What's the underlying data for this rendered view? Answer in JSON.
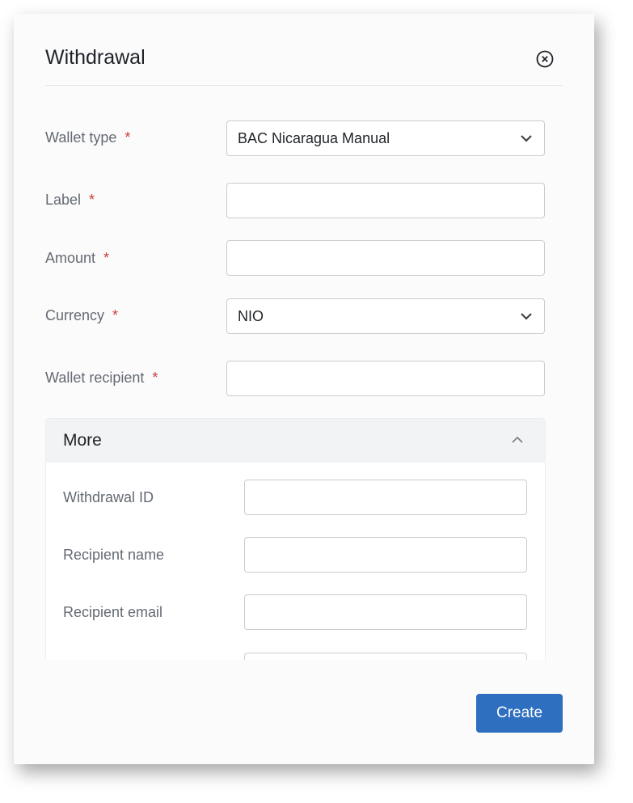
{
  "dialog": {
    "title": "Withdrawal",
    "close_icon": "close-circle-icon"
  },
  "fields": [
    {
      "label": "Wallet type",
      "required": "*",
      "type": "select",
      "value": "BAC Nicaragua Manual"
    },
    {
      "label": "Label",
      "required": "*",
      "type": "text",
      "value": ""
    },
    {
      "label": "Amount",
      "required": "*",
      "type": "text",
      "value": ""
    },
    {
      "label": "Currency",
      "required": "*",
      "type": "select",
      "value": "NIO"
    },
    {
      "label": "Wallet recipient",
      "required": "*",
      "type": "text",
      "value": ""
    }
  ],
  "more": {
    "title": "More",
    "expanded": true,
    "fields": [
      {
        "label": "Withdrawal ID",
        "value": ""
      },
      {
        "label": "Recipient name",
        "value": ""
      },
      {
        "label": "Recipient email",
        "value": ""
      },
      {
        "label": "",
        "value": ""
      }
    ]
  },
  "footer": {
    "create_label": "Create"
  },
  "colors": {
    "primary": "#2f6fbf",
    "required": "#d03a3a"
  }
}
